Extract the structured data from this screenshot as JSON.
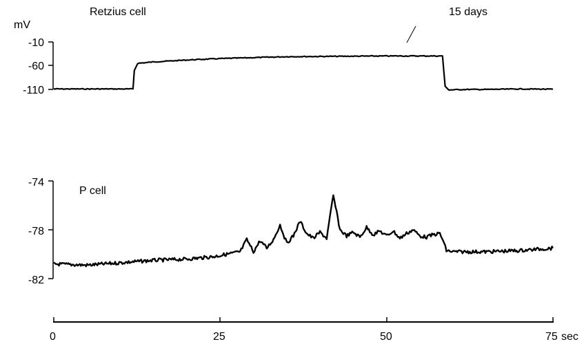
{
  "chart_data": [
    {
      "type": "line",
      "title": "Retzius cell",
      "annotation": "15 days",
      "ylabel": "mV",
      "ylim": [
        -110,
        -10
      ],
      "yticks": [
        "-10",
        "-60",
        "-110"
      ],
      "series": [
        {
          "name": "",
          "x": [
            0,
            11.9,
            12.1,
            12.6,
            15,
            20,
            25,
            30,
            35,
            40,
            45,
            50,
            55,
            58.4,
            58.8,
            59.4,
            62,
            65,
            70,
            75
          ],
          "y": [
            -109,
            -109,
            -70,
            -55,
            -52,
            -48,
            -45,
            -43,
            -41,
            -40.5,
            -40,
            -39.5,
            -39.5,
            -39.5,
            -104,
            -111,
            -110,
            -110,
            -109,
            -109.5
          ]
        }
      ]
    },
    {
      "type": "line",
      "title": "P cell",
      "ylim": [
        -82,
        -74
      ],
      "yticks": [
        "-74",
        "-78",
        "-82"
      ],
      "series": [
        {
          "name": "",
          "x": [
            0,
            5,
            10,
            15,
            20,
            24,
            26,
            28,
            29,
            30,
            31,
            32,
            33,
            34,
            35,
            36,
            37,
            38,
            39,
            40,
            41,
            42,
            43,
            44,
            45,
            46,
            47,
            48,
            49,
            50,
            51,
            52,
            53,
            54,
            55,
            56,
            57,
            58,
            58.5,
            59,
            60,
            65,
            70,
            75
          ],
          "y": [
            -80.8,
            -80.9,
            -80.7,
            -80.5,
            -80.4,
            -80.2,
            -80.0,
            -79.8,
            -78.8,
            -79.8,
            -78.9,
            -79.5,
            -78.8,
            -77.6,
            -79.1,
            -78.5,
            -77.3,
            -78.3,
            -78.7,
            -78.2,
            -78.7,
            -75.2,
            -78.0,
            -78.5,
            -78.2,
            -78.6,
            -77.8,
            -78.4,
            -78.1,
            -78.5,
            -78.1,
            -78.7,
            -78.3,
            -78.0,
            -78.5,
            -78.6,
            -78.4,
            -78.3,
            -78.9,
            -79.7,
            -79.8,
            -79.8,
            -79.7,
            -79.5
          ]
        }
      ]
    },
    {
      "type": "axis",
      "xlim": [
        0,
        75
      ],
      "xticks": [
        "0",
        "25",
        "50",
        "75"
      ],
      "xunit": "sec"
    }
  ]
}
